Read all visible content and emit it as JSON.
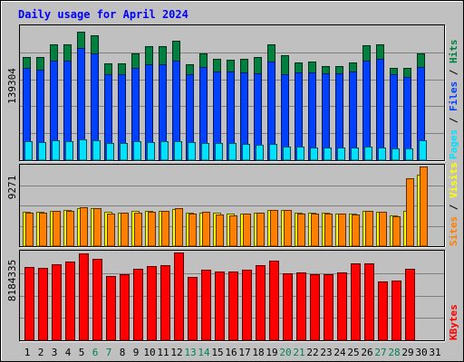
{
  "chart_data": {
    "type": "bar",
    "title": "Daily usage for April 2024",
    "categories": [
      "1",
      "2",
      "3",
      "4",
      "5",
      "6",
      "7",
      "8",
      "9",
      "10",
      "11",
      "12",
      "13",
      "14",
      "15",
      "16",
      "17",
      "18",
      "19",
      "20",
      "21",
      "22",
      "23",
      "24",
      "25",
      "26",
      "27",
      "28",
      "29",
      "30",
      "31"
    ],
    "weekend_days": [
      "6",
      "7",
      "13",
      "14",
      "20",
      "21",
      "27",
      "28"
    ],
    "panels": [
      {
        "id": "hits",
        "ymax_label": "139304",
        "ymax": 139304,
        "legend": [
          {
            "label": "Hits",
            "color": "#008040"
          },
          {
            "label": "Files",
            "color": "#0040ff"
          },
          {
            "label": "Pages",
            "color": "#00e0ff"
          }
        ],
        "series": [
          {
            "name": "Hits",
            "color": "#008040",
            "values": [
              107800,
              108200,
              121500,
              121600,
              134800,
              131100,
              101800,
              101500,
              111900,
              119200,
              119700,
              125500,
              100400,
              111900,
              106400,
              105000,
              106200,
              108100,
              121100,
              110300,
              102400,
              103200,
              98900,
              98400,
              101900,
              120000,
              121200,
              97000,
              96200,
              111600,
              null
            ]
          },
          {
            "name": "Files",
            "color": "#0040ff",
            "values": [
              96200,
              94900,
              104200,
              104000,
              117500,
              111800,
              90300,
              89800,
              96500,
              100600,
              100900,
              104100,
              89900,
              97200,
              92800,
              92600,
              91500,
              90700,
              103700,
              89600,
              92100,
              91500,
              90800,
              90900,
              93000,
              104300,
              105900,
              89700,
              86800,
              97700,
              null
            ]
          },
          {
            "name": "Pages",
            "color": "#00e0ff",
            "values": [
              19600,
              19300,
              20700,
              20300,
              21800,
              20400,
              18400,
              18000,
              19600,
              19400,
              19500,
              20200,
              18900,
              18300,
              17900,
              17800,
              17500,
              16400,
              17300,
              14500,
              14000,
              13700,
              13300,
              12800,
              13100,
              14000,
              12800,
              12400,
              12600,
              21100,
              null
            ]
          }
        ]
      },
      {
        "id": "visits",
        "ymax_label": "9271",
        "ymax": 9271,
        "legend": [
          {
            "label": "Visits",
            "color": "#ffff00"
          },
          {
            "label": "Sites",
            "color": "#ff8000"
          }
        ],
        "series": [
          {
            "name": "Visits",
            "color": "#ffff00",
            "values": [
              4010,
              4050,
              4130,
              4180,
              4410,
              4390,
              3980,
              3940,
              4070,
              4160,
              4120,
              4370,
              3880,
              3940,
              3890,
              3770,
              3840,
              3940,
              4220,
              4250,
              3900,
              3920,
              3860,
              3840,
              3780,
              4130,
              3980,
              3580,
              4150,
              8370,
              null
            ]
          },
          {
            "name": "Sites",
            "color": "#ff8000",
            "values": [
              3890,
              3910,
              4160,
              4100,
              4500,
              4430,
              3750,
              3870,
              3920,
              4020,
              4060,
              4460,
              3790,
              3970,
              3740,
              3630,
              3810,
              3910,
              4210,
              4190,
              3830,
              3790,
              3830,
              3770,
              3720,
              4150,
              4020,
              3440,
              7930,
              9271,
              null
            ]
          }
        ]
      },
      {
        "id": "kbytes",
        "ymax_label": "8184335",
        "ymax": 8184335,
        "legend": [
          {
            "label": "KBytes",
            "color": "#ff0000"
          }
        ],
        "series": [
          {
            "name": "KBytes",
            "color": "#ff0000",
            "values": [
              6860000,
              6710000,
              7100000,
              7330000,
              8090000,
              7630000,
              5990000,
              6130000,
              6640000,
              6960000,
              7010000,
              8184335,
              5880000,
              6540000,
              6380000,
              6380000,
              6560000,
              7000000,
              7460000,
              6280000,
              6350000,
              6180000,
              6150000,
              6290000,
              7140000,
              7190000,
              5520000,
              5590000,
              6630000,
              null,
              null
            ]
          }
        ]
      }
    ]
  }
}
